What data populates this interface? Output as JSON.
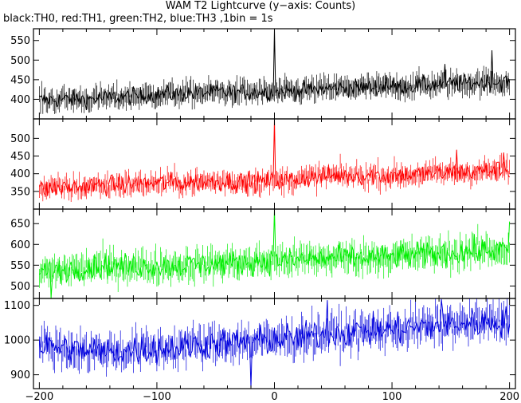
{
  "chart_data": {
    "type": "line",
    "title": "WAM T2 Lightcurve (y−axis: Counts)",
    "subtitle": "black:TH0, red:TH1, green:TH2, blue:TH3 ,1bin = 1s",
    "xlim": [
      -205,
      205
    ],
    "xticks": [
      -200,
      -100,
      0,
      100,
      200
    ],
    "xtick_labels": [
      "−200",
      "−100",
      "0",
      "100",
      "200"
    ],
    "grid": false,
    "panels": [
      {
        "series_name": "TH0",
        "color": "#000000",
        "ylim": [
          350,
          580
        ],
        "yticks": [
          400,
          450,
          500,
          550
        ],
        "baseline": [
          [
            -200,
            398
          ],
          [
            -150,
            402
          ],
          [
            -100,
            412
          ],
          [
            -50,
            418
          ],
          [
            0,
            418
          ],
          [
            50,
            428
          ],
          [
            100,
            432
          ],
          [
            150,
            440
          ],
          [
            200,
            445
          ]
        ],
        "noise": 11,
        "features": [
          {
            "x": 0,
            "y": 580,
            "label": "spike at t=0"
          },
          {
            "x": 95,
            "y": 462
          },
          {
            "x": 145,
            "y": 490
          },
          {
            "x": 185,
            "y": 525
          }
        ]
      },
      {
        "series_name": "TH1",
        "color": "#ff0000",
        "ylim": [
          300,
          555
        ],
        "yticks": [
          350,
          400,
          450,
          500
        ],
        "baseline": [
          [
            -200,
            355
          ],
          [
            -150,
            367
          ],
          [
            -100,
            373
          ],
          [
            -50,
            378
          ],
          [
            0,
            378
          ],
          [
            50,
            395
          ],
          [
            100,
            395
          ],
          [
            150,
            402
          ],
          [
            200,
            412
          ]
        ],
        "noise": 14,
        "features": [
          {
            "x": 0,
            "y": 555,
            "label": "spike at t=0"
          },
          {
            "x": 155,
            "y": 468
          },
          {
            "x": 195,
            "y": 460
          }
        ]
      },
      {
        "series_name": "TH2",
        "color": "#00ee00",
        "ylim": [
          470,
          685
        ],
        "yticks": [
          500,
          550,
          600,
          650
        ],
        "baseline": [
          [
            -200,
            532
          ],
          [
            -150,
            548
          ],
          [
            -100,
            548
          ],
          [
            -50,
            553
          ],
          [
            0,
            560
          ],
          [
            50,
            567
          ],
          [
            100,
            570
          ],
          [
            150,
            580
          ],
          [
            200,
            588
          ]
        ],
        "noise": 15,
        "features": [
          {
            "x": 0,
            "y": 685,
            "label": "spike at t=0"
          },
          {
            "x": -190,
            "y": 470
          },
          {
            "x": 200,
            "y": 655
          }
        ]
      },
      {
        "series_name": "TH3",
        "color": "#0000dd",
        "ylim": [
          860,
          1120
        ],
        "yticks": [
          900,
          1000,
          1100
        ],
        "baseline": [
          [
            -200,
            985
          ],
          [
            -150,
            965
          ],
          [
            -100,
            975
          ],
          [
            -50,
            990
          ],
          [
            0,
            1000
          ],
          [
            50,
            1020
          ],
          [
            100,
            1030
          ],
          [
            150,
            1045
          ],
          [
            200,
            1055
          ]
        ],
        "noise": 22,
        "features": [
          {
            "x": -20,
            "y": 862
          },
          {
            "x": 45,
            "y": 1115
          },
          {
            "x": 142,
            "y": 1118
          }
        ]
      }
    ]
  }
}
